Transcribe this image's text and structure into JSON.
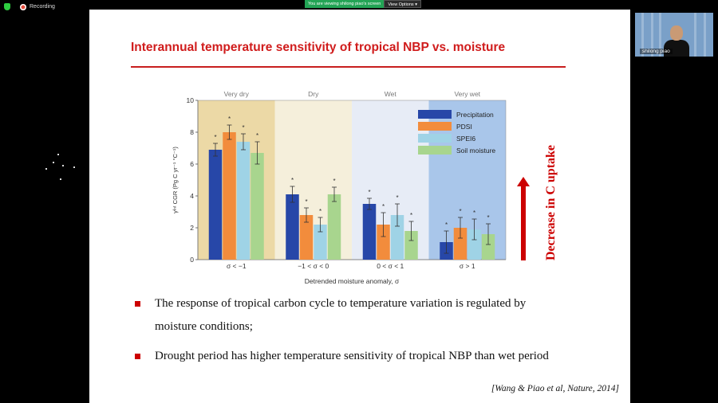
{
  "zoom_bar": {
    "recording_label": "Recording",
    "viewing_message": "You are viewing shilong piao's screen",
    "view_options_label": "View Options"
  },
  "participant": {
    "name": "shilong piao"
  },
  "slide": {
    "title": "Interannual temperature sensitivity of tropical NBP vs. moisture",
    "bullets": [
      "The response of tropical carbon cycle to temperature variation is regulated by",
      "moisture conditions;",
      "Drought period has higher temperature sensitivity of tropical NBP than wet period"
    ],
    "citation": "[Wang & Piao et al, Nature, 2014]",
    "annotation": "Decrease in C uptake"
  },
  "chart_data": {
    "type": "bar",
    "ylim": [
      0,
      10
    ],
    "yticks": [
      "0",
      "2",
      "4",
      "6",
      "8",
      "10"
    ],
    "ylabel": "γᴵⁿᵗ CGR (Pg C yr⁻¹ °C⁻¹)",
    "xlabel": "Detrended moisture anomaly, σ",
    "regions": [
      {
        "label": "Very  dry",
        "color": "#ecd9a6"
      },
      {
        "label": "Dry",
        "color": "#f5efdb"
      },
      {
        "label": "Wet",
        "color": "#e7ecf6"
      },
      {
        "label": "Very  wet",
        "color": "#a9c6ea"
      }
    ],
    "categories": [
      "σ < −1",
      "−1 < σ < 0",
      "0 < σ < 1",
      "σ > 1"
    ],
    "series": [
      {
        "name": "Precipitation",
        "color": "#2747a8",
        "values": [
          6.9,
          4.1,
          3.5,
          1.1
        ],
        "errors": [
          0.4,
          0.5,
          0.35,
          0.7
        ]
      },
      {
        "name": "PDSI",
        "color": "#f28c3c",
        "values": [
          8.0,
          2.8,
          2.2,
          2.0
        ],
        "errors": [
          0.45,
          0.45,
          0.75,
          0.65
        ]
      },
      {
        "name": "SPEI6",
        "color": "#9fd3e6",
        "values": [
          7.4,
          2.2,
          2.8,
          1.9
        ],
        "errors": [
          0.5,
          0.45,
          0.7,
          0.65
        ]
      },
      {
        "name": "Soil moisture",
        "color": "#a8d58e",
        "values": [
          6.7,
          4.1,
          1.8,
          1.6
        ],
        "errors": [
          0.7,
          0.45,
          0.6,
          0.65
        ]
      }
    ],
    "significance_marker": "*",
    "legend_position": "top-right"
  }
}
